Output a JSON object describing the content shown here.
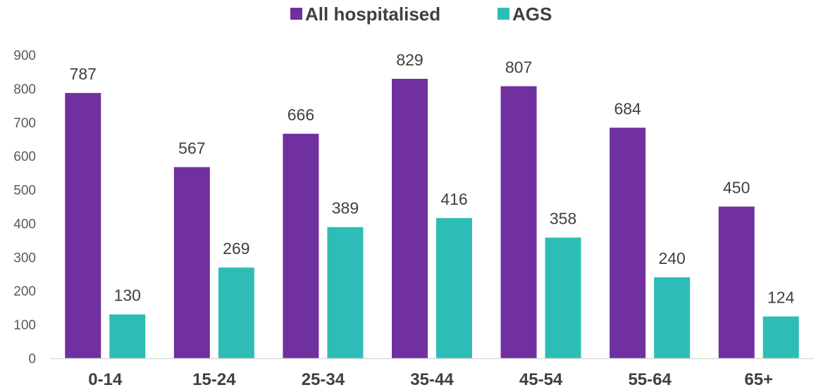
{
  "chart_data": {
    "type": "bar",
    "categories": [
      "0-14",
      "15-24",
      "25-34",
      "35-44",
      "45-54",
      "55-64",
      "65+"
    ],
    "series": [
      {
        "name": "All hospitalised",
        "color": "#7030a0",
        "values": [
          787,
          567,
          666,
          829,
          807,
          684,
          450
        ]
      },
      {
        "name": "AGS",
        "color": "#2ebdb6",
        "values": [
          130,
          269,
          389,
          416,
          358,
          240,
          124
        ]
      }
    ],
    "title": "",
    "xlabel": "",
    "ylabel": "",
    "ylim": [
      0,
      900
    ],
    "yticks": [
      0,
      100,
      200,
      300,
      400,
      500,
      600,
      700,
      800,
      900
    ],
    "grid": false,
    "legend": "top-center",
    "data_labels": true
  }
}
